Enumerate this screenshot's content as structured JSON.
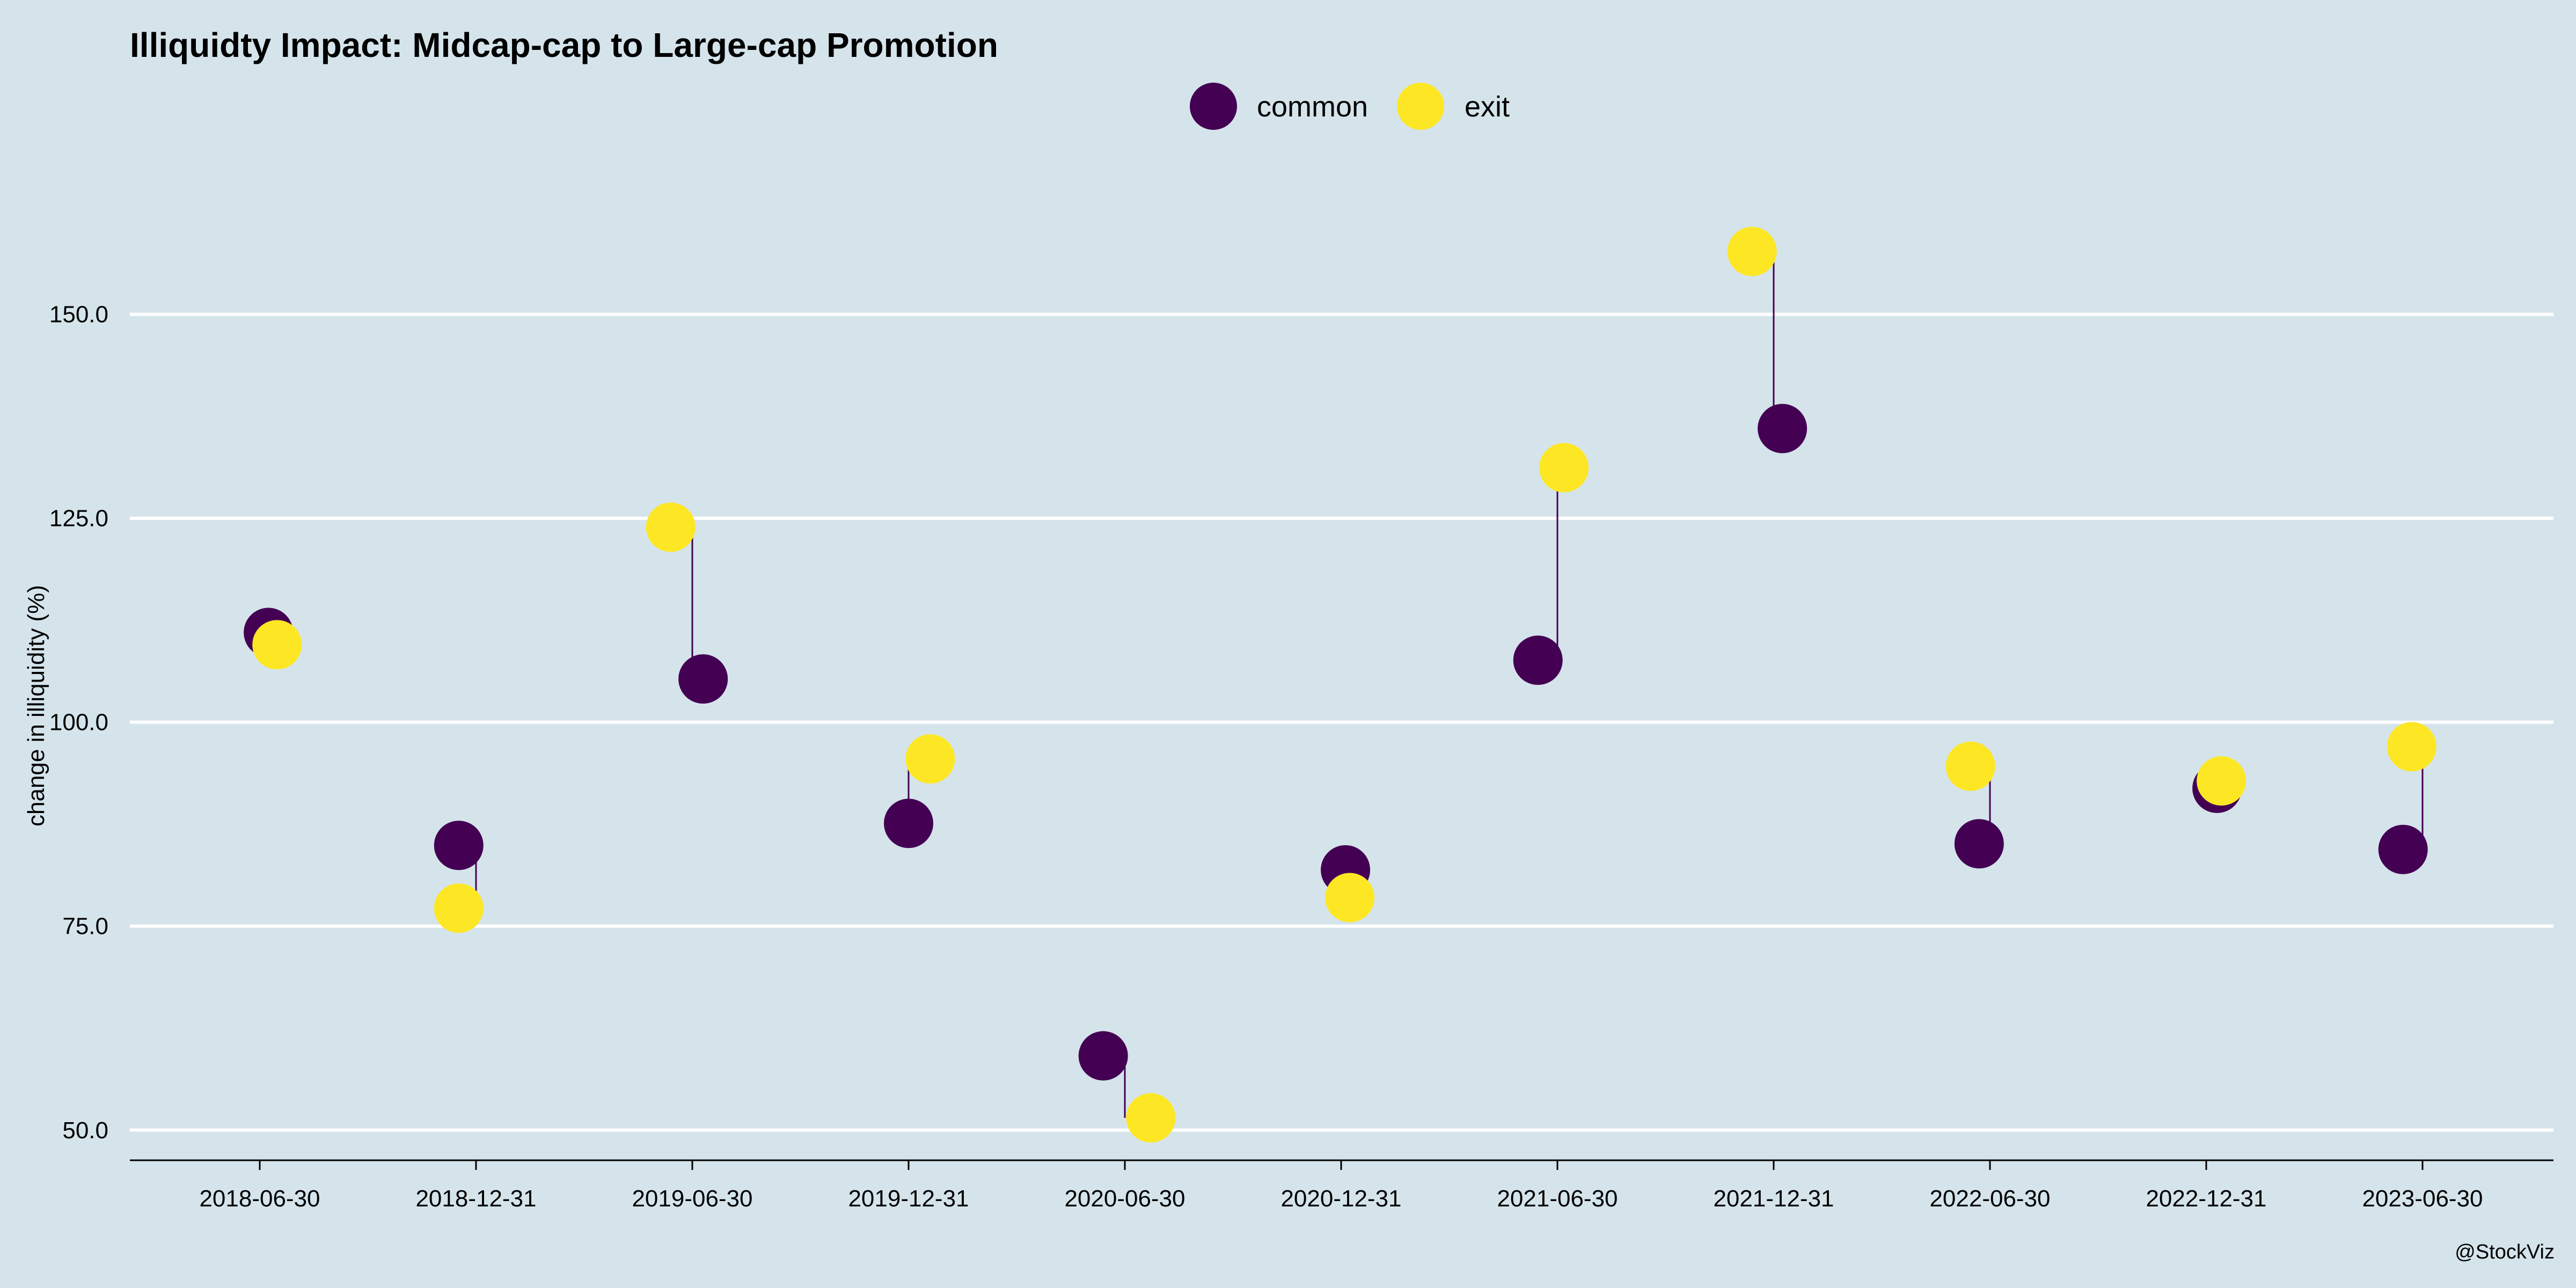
{
  "chart_data": {
    "type": "scatter",
    "title": "Illiquidty Impact: Midcap-cap to Large-cap Promotion",
    "xlabel": "",
    "ylabel": "change in illiquidity (%)",
    "credit": "@StockViz",
    "categories": [
      "2018-06-30",
      "2018-12-31",
      "2019-06-30",
      "2019-12-31",
      "2020-06-30",
      "2020-12-31",
      "2021-06-30",
      "2021-12-31",
      "2022-06-30",
      "2022-12-31",
      "2023-06-30"
    ],
    "ylim": [
      46.3,
      173.4
    ],
    "y_ticks": [
      {
        "value": 50,
        "label": "50.0"
      },
      {
        "value": 75,
        "label": "75.0"
      },
      {
        "value": 100,
        "label": "100.0"
      },
      {
        "value": 125,
        "label": "125.0"
      },
      {
        "value": 150,
        "label": "150.0"
      }
    ],
    "grid": "horizontal",
    "legend_position": "top",
    "series": [
      {
        "name": "common",
        "color": "#440154",
        "values": [
          111.0,
          84.9,
          105.3,
          87.6,
          59.1,
          81.9,
          107.6,
          136.0,
          85.1,
          91.9,
          84.4
        ]
      },
      {
        "name": "exit",
        "color": "#fde725",
        "values": [
          109.5,
          77.2,
          123.9,
          95.5,
          51.5,
          78.5,
          131.2,
          157.7,
          94.6,
          92.8,
          97.0
        ]
      }
    ],
    "x_jitter_common": [
      0.04,
      -0.08,
      0.05,
      0.0,
      -0.1,
      0.02,
      -0.09,
      0.04,
      -0.05,
      0.05,
      -0.09
    ],
    "x_jitter_exit": [
      0.08,
      -0.08,
      -0.1,
      0.1,
      0.12,
      0.04,
      0.03,
      -0.1,
      -0.09,
      0.07,
      -0.05
    ]
  }
}
